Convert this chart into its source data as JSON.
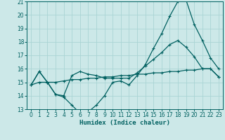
{
  "xlabel": "Humidex (Indice chaleur)",
  "xlim": [
    -0.5,
    23.5
  ],
  "ylim": [
    13,
    21
  ],
  "yticks": [
    13,
    14,
    15,
    16,
    17,
    18,
    19,
    20,
    21
  ],
  "xticks": [
    0,
    1,
    2,
    3,
    4,
    5,
    6,
    7,
    8,
    9,
    10,
    11,
    12,
    13,
    14,
    15,
    16,
    17,
    18,
    19,
    20,
    21,
    22,
    23
  ],
  "bg_color": "#cce8e8",
  "grid_color": "#aad4d4",
  "line_color": "#006060",
  "line1_y": [
    14.8,
    15.8,
    15.0,
    14.1,
    13.9,
    13.3,
    12.7,
    12.8,
    13.3,
    14.0,
    15.0,
    15.1,
    14.8,
    15.5,
    16.3,
    17.5,
    18.6,
    19.9,
    21.0,
    21.1,
    19.3,
    18.1,
    16.8,
    16.0
  ],
  "line2_y": [
    14.8,
    15.8,
    15.0,
    14.1,
    14.0,
    15.5,
    15.8,
    15.6,
    15.5,
    15.3,
    15.3,
    15.3,
    15.3,
    15.7,
    16.2,
    16.7,
    17.2,
    17.8,
    18.1,
    17.6,
    16.9,
    16.0,
    16.0,
    15.4
  ],
  "line3_y": [
    14.8,
    15.0,
    15.0,
    15.0,
    15.1,
    15.2,
    15.2,
    15.3,
    15.3,
    15.4,
    15.4,
    15.5,
    15.5,
    15.6,
    15.6,
    15.7,
    15.7,
    15.8,
    15.8,
    15.9,
    15.9,
    16.0,
    16.0,
    15.4
  ]
}
